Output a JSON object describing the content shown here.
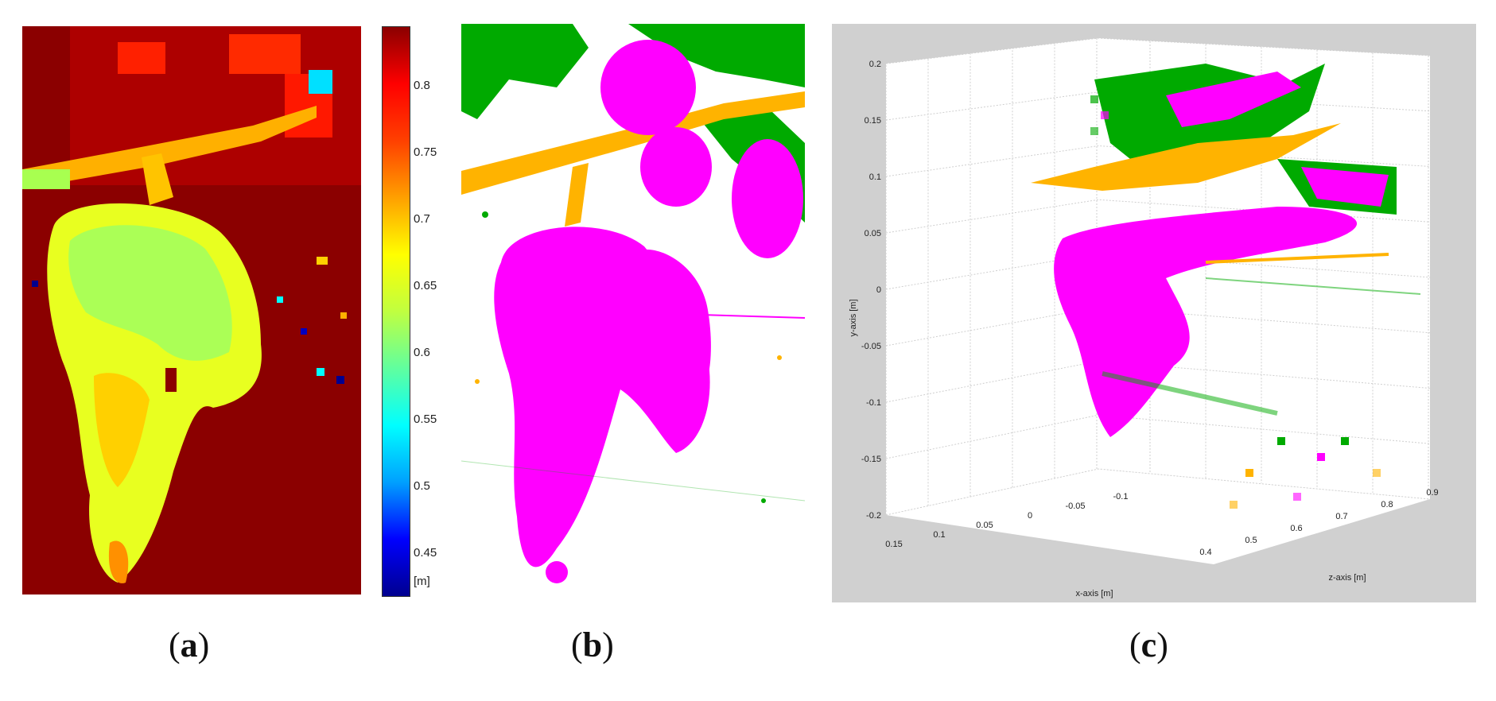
{
  "panels": [
    {
      "id": "a",
      "label": "a"
    },
    {
      "id": "b",
      "label": "b"
    },
    {
      "id": "c",
      "label": "c"
    }
  ],
  "colorbar": {
    "ticks": [
      "0.8",
      "0.75",
      "0.7",
      "0.65",
      "0.6",
      "0.55",
      "0.5",
      "0.45"
    ],
    "unit": "[m]",
    "colors": [
      "#00008f",
      "#0000ff",
      "#00a0ff",
      "#00ffff",
      "#60ff9f",
      "#c0ff40",
      "#ffff00",
      "#ffa000",
      "#ff4000",
      "#ff0000",
      "#8b0000"
    ]
  },
  "plot3d": {
    "y_ticks": [
      "0.2",
      "0.15",
      "0.1",
      "0.05",
      "0",
      "-0.05",
      "-0.1",
      "-0.15",
      "-0.2"
    ],
    "x_ticks": [
      "0.15",
      "0.1",
      "0.05",
      "0",
      "-0.05",
      "-0.1"
    ],
    "z_ticks": [
      "0.4",
      "0.5",
      "0.6",
      "0.7",
      "0.8",
      "0.9"
    ],
    "y_label": "y-axis [m]",
    "x_label": "x-axis [m]",
    "z_label": "z-axis [m]",
    "colors": {
      "grape": "#ff00ff",
      "leaf": "#00aa00",
      "stem": "#ffb300",
      "background": "#d0d0d0"
    }
  }
}
